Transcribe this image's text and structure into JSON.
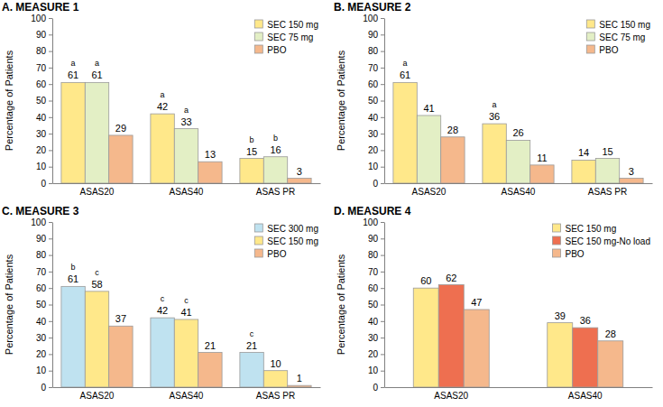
{
  "chart_data": [
    {
      "type": "bar",
      "title": "A. MEASURE 1",
      "y_label": "Percentage of Patients",
      "categories": [
        "ASAS20",
        "ASAS40",
        "ASAS PR"
      ],
      "series": [
        {
          "name": "SEC 150 mg",
          "color": "#ffe88a",
          "values": [
            61,
            42,
            15
          ],
          "significance": [
            "a",
            "a",
            "b"
          ]
        },
        {
          "name": "SEC 75 mg",
          "color": "#e3efc5",
          "values": [
            61,
            33,
            16
          ],
          "significance": [
            "a",
            "a",
            "b"
          ]
        },
        {
          "name": "PBO",
          "color": "#f5b88c",
          "values": [
            29,
            13,
            3
          ]
        }
      ],
      "ylim": [
        0,
        100
      ],
      "yticks": [
        0,
        10,
        20,
        30,
        40,
        50,
        60,
        70,
        80,
        90,
        100
      ],
      "data_labels": true,
      "legend": "top-right",
      "grid": false
    },
    {
      "type": "bar",
      "title": "B. MEASURE 2",
      "y_label": "Percentage of Patients",
      "categories": [
        "ASAS20",
        "ASAS40",
        "ASAS PR"
      ],
      "series": [
        {
          "name": "SEC 150 mg",
          "color": "#ffe88a",
          "values": [
            61,
            36,
            14
          ],
          "significance": [
            "a",
            "a",
            null
          ]
        },
        {
          "name": "SEC 75 mg",
          "color": "#e3efc5",
          "values": [
            41,
            26,
            15
          ]
        },
        {
          "name": "PBO",
          "color": "#f5b88c",
          "values": [
            28,
            11,
            3
          ]
        }
      ],
      "ylim": [
        0,
        100
      ],
      "yticks": [
        0,
        10,
        20,
        30,
        40,
        50,
        60,
        70,
        80,
        90,
        100
      ],
      "data_labels": true,
      "legend": "top-right",
      "grid": false
    },
    {
      "type": "bar",
      "title": "C. MEASURE 3",
      "y_label": "Percentage of Patients",
      "categories": [
        "ASAS20",
        "ASAS40",
        "ASAS PR"
      ],
      "series": [
        {
          "name": "SEC 300 mg",
          "color": "#bfe2f0",
          "values": [
            61,
            42,
            21
          ],
          "significance": [
            "b",
            "c",
            "c"
          ]
        },
        {
          "name": "SEC 150 mg",
          "color": "#ffe88a",
          "values": [
            58,
            41,
            10
          ],
          "significance": [
            "c",
            "c",
            null
          ]
        },
        {
          "name": "PBO",
          "color": "#f5b88c",
          "values": [
            37,
            21,
            1
          ]
        }
      ],
      "ylim": [
        0,
        100
      ],
      "yticks": [
        0,
        10,
        20,
        30,
        40,
        50,
        60,
        70,
        80,
        90,
        100
      ],
      "data_labels": true,
      "legend": "top-right",
      "grid": false
    },
    {
      "type": "bar",
      "title": "D. MEASURE 4",
      "y_label": "Percentage of Patients",
      "categories": [
        "ASAS20",
        "ASAS40"
      ],
      "series": [
        {
          "name": "SEC 150 mg",
          "color": "#ffe88a",
          "values": [
            60,
            39
          ]
        },
        {
          "name": "SEC 150 mg-No load",
          "color": "#ee6f50",
          "values": [
            62,
            36
          ]
        },
        {
          "name": "PBO",
          "color": "#f5b88c",
          "values": [
            47,
            28
          ]
        }
      ],
      "ylim": [
        0,
        100
      ],
      "yticks": [
        0,
        10,
        20,
        30,
        40,
        50,
        60,
        70,
        80,
        90,
        100
      ],
      "data_labels": true,
      "legend": "top-right",
      "grid": false
    }
  ]
}
